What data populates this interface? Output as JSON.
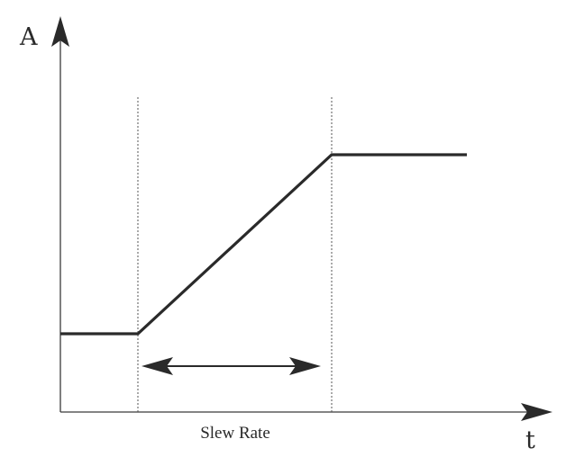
{
  "axes": {
    "y_label": "A",
    "x_label": "t"
  },
  "annotation": {
    "caption": "Slew Rate"
  },
  "colors": {
    "axis": "#3a3a3a",
    "signal": "#2a2a2a",
    "guide": "#555555",
    "text": "#2a2a2a"
  }
}
